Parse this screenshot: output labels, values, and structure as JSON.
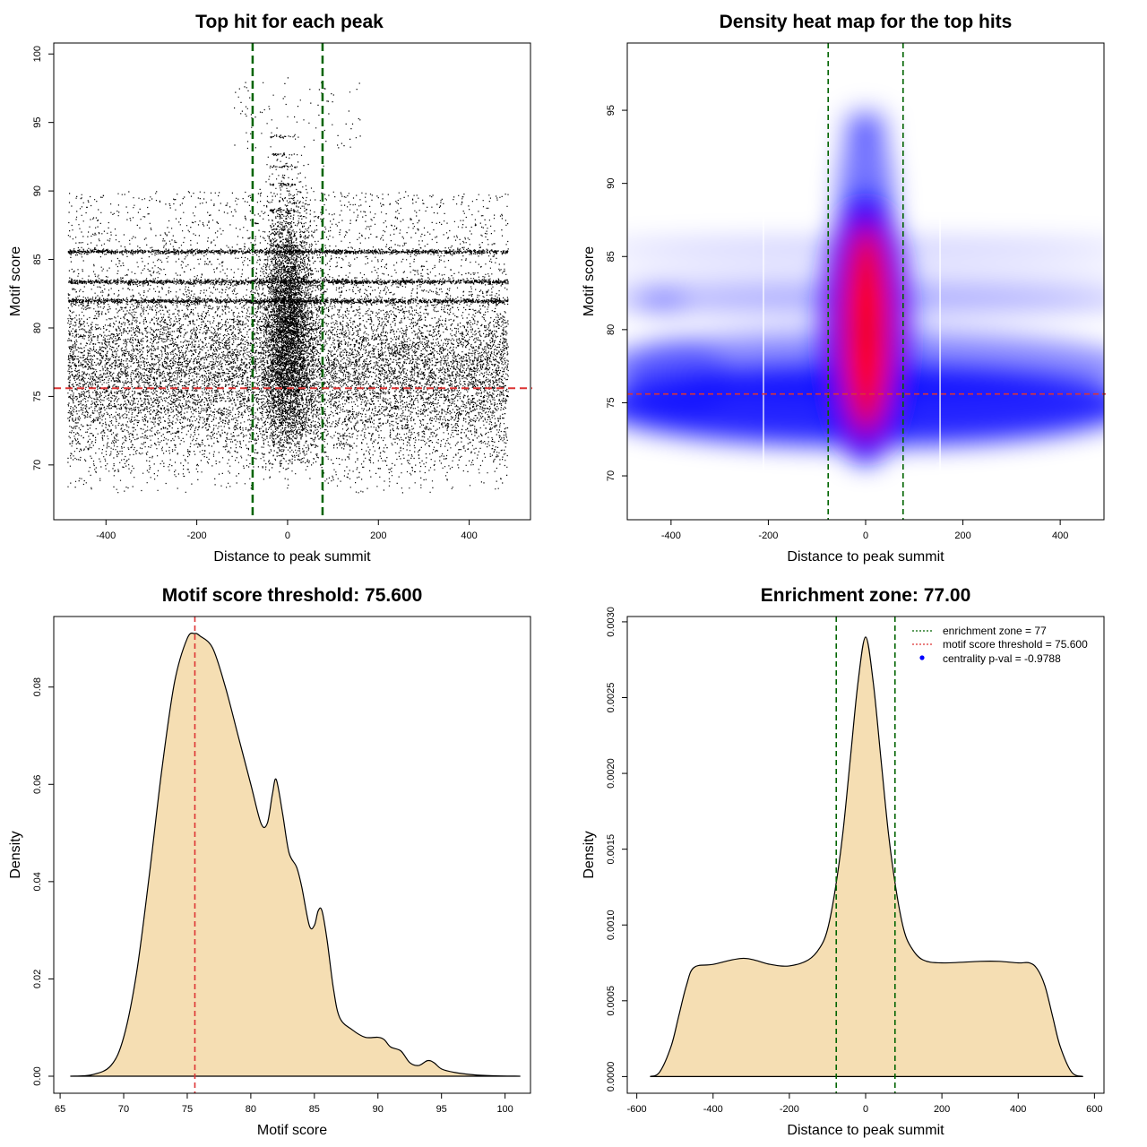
{
  "chart_data": [
    {
      "id": "scatter",
      "type": "scatter",
      "title": "Top hit for each peak",
      "xlabel": "Distance to peak summit",
      "ylabel": "Motif score",
      "xlim": [
        -515,
        535
      ],
      "ylim": [
        66.0,
        100.8
      ],
      "xticks": [
        -400,
        -200,
        0,
        200,
        400
      ],
      "yticks": [
        70,
        75,
        80,
        85,
        90,
        95,
        100
      ],
      "vlines": [
        -77,
        77
      ],
      "hline": 75.6,
      "colors": {
        "points": "#000000",
        "vlines": "#006400",
        "hline": "#dd3333"
      },
      "point_distribution": {
        "x_range": [
          -485,
          485
        ],
        "y_background": {
          "mode": 75.5,
          "sd": 3.6,
          "min": 68,
          "max": 97
        },
        "central_cluster": {
          "x_sd": 28,
          "y_mode": 80.0,
          "y_sd": 4.5,
          "y_max": 99.5
        },
        "horizontal_bands": [
          82.0,
          83.4,
          85.6
        ],
        "central_bands": [
          86.0,
          88.6,
          90.5,
          91.8,
          92.7,
          94.0
        ]
      },
      "grid": false
    },
    {
      "id": "heatmap",
      "type": "heatmap",
      "title": "Density heat map for the top hits",
      "xlabel": "Distance to peak summit",
      "ylabel": "Motif score",
      "xlim": [
        -490,
        490
      ],
      "ylim": [
        67.0,
        99.6
      ],
      "xticks": [
        -400,
        -200,
        0,
        200,
        400
      ],
      "yticks": [
        70,
        75,
        80,
        85,
        90,
        95
      ],
      "vlines": [
        -77,
        77
      ],
      "hline": 75.6,
      "white_lines": [
        -210,
        153
      ],
      "colors": {
        "low": "#ffffff",
        "mid": "#0000ff",
        "high": "#ff0000",
        "vlines": "#006400",
        "hline": "#dd3333"
      },
      "grid": false
    },
    {
      "id": "density-score",
      "type": "area",
      "title": "Motif score threshold: 75.600",
      "xlabel": "Motif score",
      "ylabel": "Density",
      "xlim": [
        64.5,
        102.0
      ],
      "ylim": [
        -0.0035,
        0.0945
      ],
      "xticks": [
        65,
        70,
        75,
        80,
        85,
        90,
        95,
        100
      ],
      "yticks": [
        0.0,
        0.02,
        0.04,
        0.06,
        0.08
      ],
      "ytick_labels": [
        "0.00",
        "0.02",
        "0.04",
        "0.06",
        "0.08"
      ],
      "vline": 75.6,
      "x": [
        65.8,
        67.5,
        69.0,
        70.0,
        71.0,
        72.0,
        73.0,
        74.0,
        75.0,
        75.6,
        76.0,
        77.0,
        78.0,
        79.0,
        80.0,
        80.8,
        81.3,
        81.7,
        82.0,
        82.5,
        83.0,
        83.6,
        84.0,
        84.6,
        85.0,
        85.3,
        85.6,
        86.0,
        86.5,
        87.0,
        88.0,
        89.0,
        90.0,
        90.5,
        91.0,
        91.8,
        92.5,
        93.2,
        93.9,
        94.4,
        95.0,
        96.0,
        97.5,
        99.0,
        101.2
      ],
      "y": [
        0.0,
        0.0003,
        0.0022,
        0.008,
        0.021,
        0.041,
        0.063,
        0.081,
        0.09,
        0.091,
        0.0905,
        0.088,
        0.08,
        0.07,
        0.06,
        0.052,
        0.052,
        0.058,
        0.061,
        0.054,
        0.046,
        0.043,
        0.039,
        0.031,
        0.031,
        0.034,
        0.034,
        0.028,
        0.018,
        0.012,
        0.0095,
        0.008,
        0.008,
        0.0075,
        0.006,
        0.0052,
        0.0028,
        0.0022,
        0.0032,
        0.0028,
        0.0015,
        0.0008,
        0.0003,
        0.0001,
        0.0
      ],
      "colors": {
        "fill": "#f5deb3",
        "line": "#000000",
        "vline": "#dd3333"
      },
      "grid": false
    },
    {
      "id": "density-distance",
      "type": "area",
      "title": "Enrichment zone: 77.00",
      "xlabel": "Distance to peak summit",
      "ylabel": "Density",
      "xlim": [
        -625,
        625
      ],
      "ylim": [
        -0.00011,
        0.003035
      ],
      "xticks": [
        -600,
        -400,
        -200,
        0,
        200,
        400,
        600
      ],
      "yticks": [
        0.0,
        0.0005,
        0.001,
        0.0015,
        0.002,
        0.0025,
        0.003
      ],
      "ytick_labels": [
        "0.0000",
        "0.0005",
        "0.0010",
        "0.0015",
        "0.0020",
        "0.0025",
        "0.0030"
      ],
      "vlines": [
        -77,
        77
      ],
      "x": [
        -565,
        -540,
        -510,
        -490,
        -470,
        -450,
        -400,
        -320,
        -250,
        -200,
        -150,
        -120,
        -100,
        -80,
        -60,
        -40,
        -20,
        0,
        20,
        40,
        60,
        80,
        100,
        120,
        150,
        200,
        300,
        350,
        400,
        430,
        450,
        470,
        490,
        510,
        540,
        570
      ],
      "y": [
        0.0,
        3e-05,
        0.0002,
        0.0004,
        0.0006,
        0.00072,
        0.00074,
        0.00078,
        0.00074,
        0.00073,
        0.00077,
        0.00085,
        0.00097,
        0.00123,
        0.0016,
        0.0021,
        0.0026,
        0.0029,
        0.0026,
        0.0021,
        0.0016,
        0.00123,
        0.00097,
        0.00085,
        0.00077,
        0.00075,
        0.00076,
        0.00076,
        0.00075,
        0.00075,
        0.00071,
        0.0006,
        0.0004,
        0.0002,
        3e-05,
        0.0
      ],
      "legend": {
        "position": "top-right",
        "entries": [
          {
            "label": "enrichment zone = 77",
            "symbol": "dotted-line",
            "color": "#006400"
          },
          {
            "label": "motif score threshold = 75.600",
            "symbol": "dotted-line",
            "color": "#dd3333"
          },
          {
            "label": "centrality p-val = -0.9788",
            "symbol": "dot",
            "color": "#0000ff"
          }
        ]
      },
      "colors": {
        "fill": "#f5deb3",
        "line": "#000000",
        "vlines": "#006400"
      },
      "grid": false
    }
  ]
}
